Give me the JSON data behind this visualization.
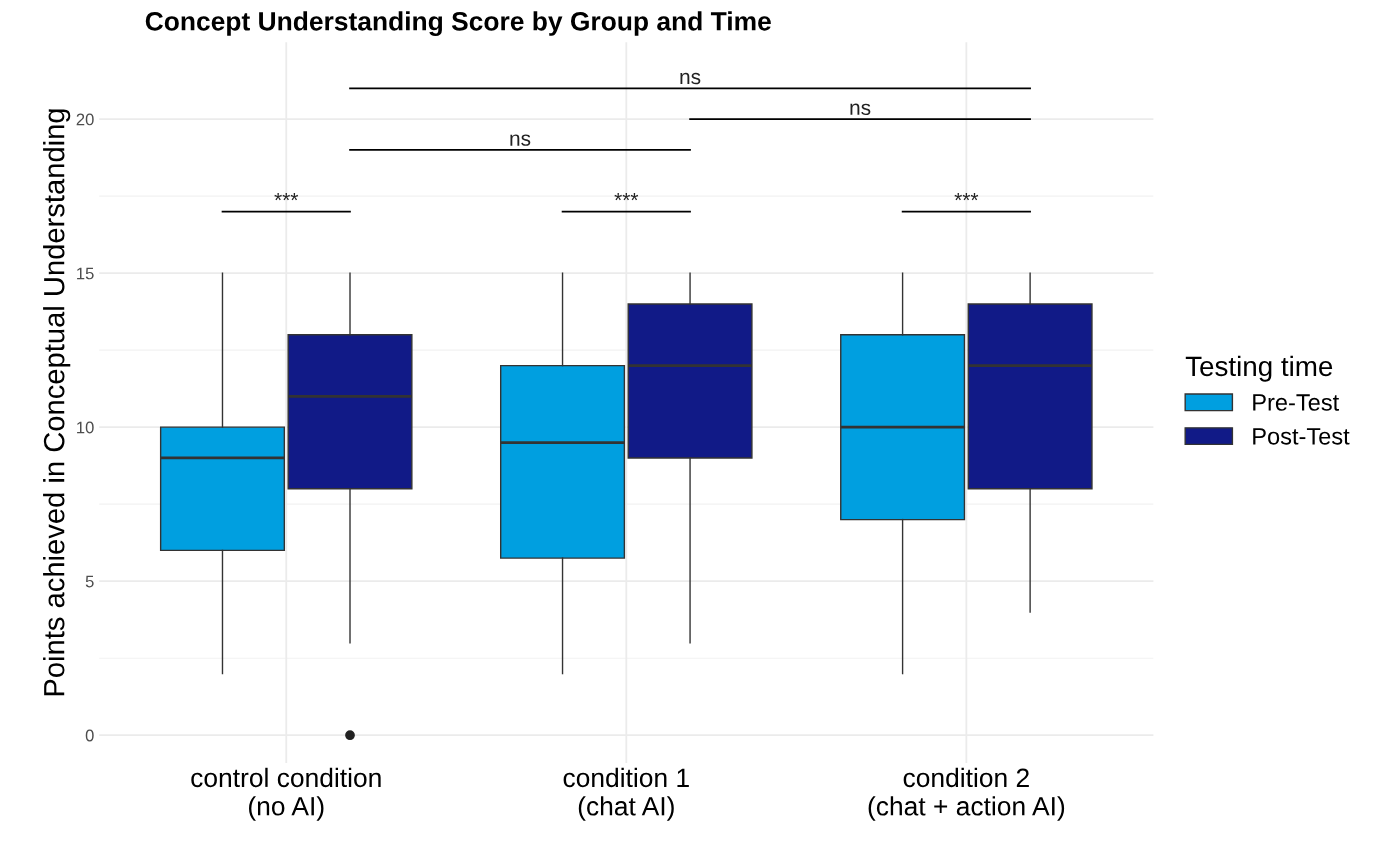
{
  "chart_data": {
    "type": "box",
    "title": "Concept Understanding Score by Group and Time",
    "ylabel": "Points achieved in Conceptual Understanding",
    "legend_title": "Testing time",
    "categories": [
      "control condition\n(no AI)",
      "condition 1\n(chat AI)",
      "condition 2\n(chat + action AI)"
    ],
    "series": [
      {
        "name": "Pre-Test",
        "color": "#009fe0",
        "boxes": [
          {
            "low": 2,
            "q1": 6,
            "median": 9,
            "q3": 10,
            "high": 15
          },
          {
            "low": 2,
            "q1": 5.75,
            "median": 9.5,
            "q3": 12,
            "high": 15
          },
          {
            "low": 2,
            "q1": 7,
            "median": 10,
            "q3": 13,
            "high": 15
          }
        ]
      },
      {
        "name": "Post-Test",
        "color": "#111a87",
        "boxes": [
          {
            "low": 3,
            "q1": 8,
            "median": 11,
            "q3": 13,
            "high": 15,
            "outliers": [
              0
            ]
          },
          {
            "low": 3,
            "q1": 9,
            "median": 12,
            "q3": 14,
            "high": 15
          },
          {
            "low": 4,
            "q1": 8,
            "median": 12,
            "q3": 14,
            "high": 15
          }
        ]
      }
    ],
    "annotations": [
      "***",
      "***",
      "***",
      "ns",
      "ns",
      "ns"
    ],
    "ylim": [
      -0.9,
      22.5
    ],
    "yticks": [
      0,
      5,
      10,
      15,
      20
    ],
    "grid": true,
    "legend": "right"
  }
}
